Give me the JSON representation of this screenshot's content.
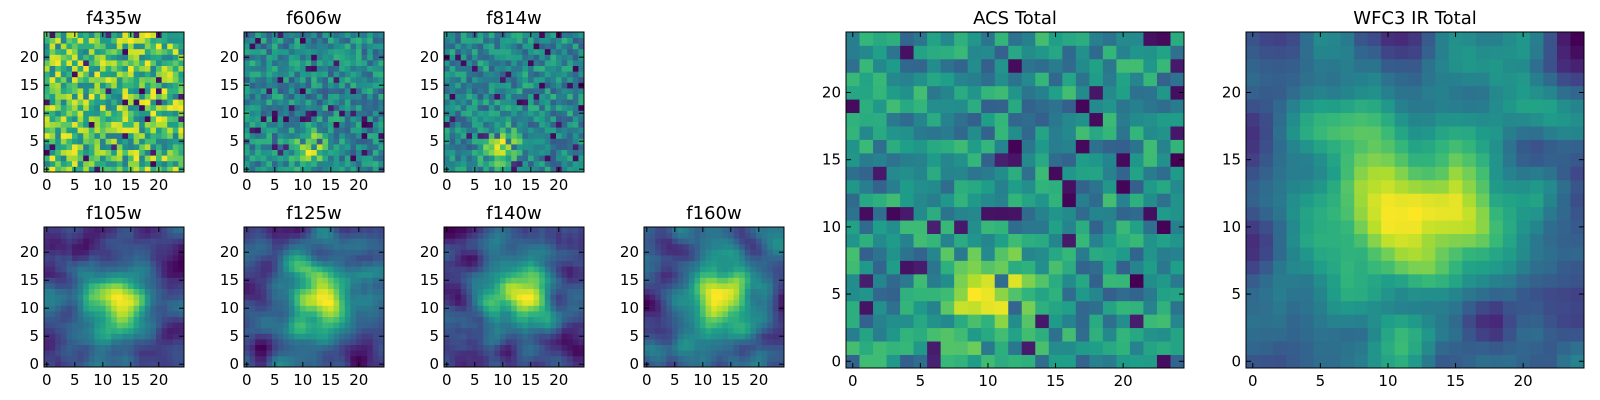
{
  "chart_data": [
    {
      "type": "heatmap",
      "title": "f435w",
      "colormap": "viridis",
      "grid": false,
      "nx": 25,
      "ny": 25,
      "xlim": [
        -0.5,
        24.5
      ],
      "ylim": [
        -0.5,
        24.5
      ],
      "xticks": [
        0,
        5,
        10,
        15,
        20
      ],
      "yticks": [
        0,
        5,
        10,
        15,
        20
      ],
      "pattern": "noise",
      "bright_spot": null
    },
    {
      "type": "heatmap",
      "title": "f606w",
      "colormap": "viridis",
      "grid": false,
      "nx": 25,
      "ny": 25,
      "xlim": [
        -0.5,
        24.5
      ],
      "ylim": [
        -0.5,
        24.5
      ],
      "xticks": [
        0,
        5,
        10,
        15,
        20
      ],
      "yticks": [
        0,
        5,
        10,
        15,
        20
      ],
      "pattern": "noise",
      "bright_spot": [
        11,
        4
      ]
    },
    {
      "type": "heatmap",
      "title": "f814w",
      "colormap": "viridis",
      "grid": false,
      "nx": 25,
      "ny": 25,
      "xlim": [
        -0.5,
        24.5
      ],
      "ylim": [
        -0.5,
        24.5
      ],
      "xticks": [
        0,
        5,
        10,
        15,
        20
      ],
      "yticks": [
        0,
        5,
        10,
        15,
        20
      ],
      "pattern": "noise",
      "bright_spot": [
        10,
        4
      ]
    },
    {
      "type": "heatmap",
      "title": "f105w",
      "colormap": "viridis",
      "grid": false,
      "nx": 25,
      "ny": 25,
      "xlim": [
        -0.5,
        24.5
      ],
      "ylim": [
        -0.5,
        24.5
      ],
      "xticks": [
        0,
        5,
        10,
        15,
        20
      ],
      "yticks": [
        0,
        5,
        10,
        15,
        20
      ],
      "pattern": "smooth",
      "bright_spot": [
        12,
        11
      ]
    },
    {
      "type": "heatmap",
      "title": "f125w",
      "colormap": "viridis",
      "grid": false,
      "nx": 25,
      "ny": 25,
      "xlim": [
        -0.5,
        24.5
      ],
      "ylim": [
        -0.5,
        24.5
      ],
      "xticks": [
        0,
        5,
        10,
        15,
        20
      ],
      "yticks": [
        0,
        5,
        10,
        15,
        20
      ],
      "pattern": "smooth",
      "bright_spot": [
        13,
        12
      ]
    },
    {
      "type": "heatmap",
      "title": "f140w",
      "colormap": "viridis",
      "grid": false,
      "nx": 25,
      "ny": 25,
      "xlim": [
        -0.5,
        24.5
      ],
      "ylim": [
        -0.5,
        24.5
      ],
      "xticks": [
        0,
        5,
        10,
        15,
        20
      ],
      "yticks": [
        0,
        5,
        10,
        15,
        20
      ],
      "pattern": "smooth",
      "bright_spot": [
        13,
        12
      ]
    },
    {
      "type": "heatmap",
      "title": "f160w",
      "colormap": "viridis",
      "grid": false,
      "nx": 25,
      "ny": 25,
      "xlim": [
        -0.5,
        24.5
      ],
      "ylim": [
        -0.5,
        24.5
      ],
      "xticks": [
        0,
        5,
        10,
        15,
        20
      ],
      "yticks": [
        0,
        5,
        10,
        15,
        20
      ],
      "pattern": "smooth",
      "bright_spot": [
        14,
        11
      ]
    },
    {
      "type": "heatmap",
      "title": "ACS Total",
      "colormap": "viridis",
      "grid": false,
      "nx": 25,
      "ny": 25,
      "xlim": [
        -0.5,
        24.5
      ],
      "ylim": [
        -0.5,
        24.5
      ],
      "xticks": [
        0,
        5,
        10,
        15,
        20
      ],
      "yticks": [
        0,
        5,
        10,
        15,
        20
      ],
      "pattern": "noise",
      "bright_spot": [
        10,
        5
      ]
    },
    {
      "type": "heatmap",
      "title": "WFC3 IR Total",
      "colormap": "viridis",
      "grid": false,
      "nx": 25,
      "ny": 25,
      "xlim": [
        -0.5,
        24.5
      ],
      "ylim": [
        -0.5,
        24.5
      ],
      "xticks": [
        0,
        5,
        10,
        15,
        20
      ],
      "yticks": [
        0,
        5,
        10,
        15,
        20
      ],
      "pattern": "smooth",
      "bright_spot": [
        12,
        12
      ]
    }
  ]
}
